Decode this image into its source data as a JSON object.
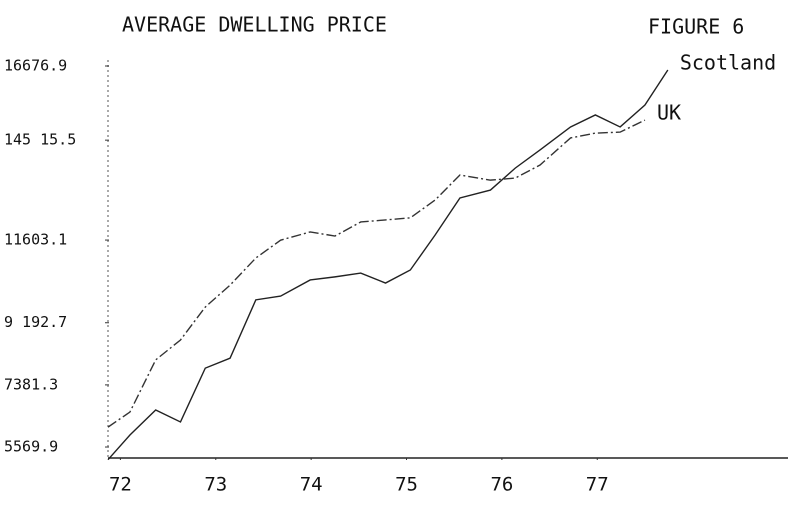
{
  "chart_data": {
    "type": "line",
    "title": "AVERAGE DWELLING PRICE",
    "subtitle": "FIGURE 6",
    "x": [
      71.87,
      72.1,
      72.37,
      72.63,
      72.89,
      73.15,
      73.42,
      73.68,
      73.99,
      74.25,
      74.52,
      74.78,
      75.04,
      75.3,
      75.56,
      75.88,
      76.14,
      76.4,
      76.72,
      76.98,
      77.24,
      77.5,
      77.74
    ],
    "series": [
      {
        "name": "Scotland",
        "color": "#222222",
        "dash": "solid",
        "values": [
          5200,
          5920,
          6650,
          6300,
          7870,
          8160,
          9860,
          9970,
          10440,
          10530,
          10640,
          10350,
          10730,
          11750,
          12830,
          13060,
          13700,
          14230,
          14900,
          15250,
          14900,
          15540,
          16560
        ]
      },
      {
        "name": "UK",
        "color": "#333333",
        "dash": "dashdot",
        "values": [
          6150,
          6590,
          8110,
          8690,
          9650,
          10290,
          11080,
          11600,
          11840,
          11720,
          12130,
          12190,
          12250,
          12770,
          13500,
          13350,
          13410,
          13790,
          14580,
          14720,
          14750,
          15100,
          null
        ]
      }
    ],
    "xlim": [
      71.87,
      79.0
    ],
    "xticks": [
      72,
      73,
      74,
      75,
      76,
      77
    ],
    "ylim": [
      5250,
      16676.9
    ],
    "yticks": [
      5569.9,
      7381.3,
      {
        "value": 9192.7,
        "label": "9 192.7"
      },
      11603.1,
      {
        "value": 14515.5,
        "label": "145 15.5"
      },
      16676.9
    ]
  }
}
